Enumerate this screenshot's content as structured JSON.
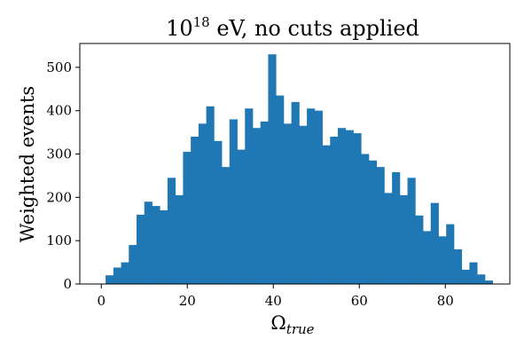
{
  "chart_data": {
    "type": "bar",
    "title_base": "10",
    "title_exp": "18",
    "title_rest": " eV, no cuts applied",
    "xlabel_main": "Ω",
    "xlabel_sub": "true",
    "ylabel": "Weighted events",
    "xlim": [
      -5,
      95
    ],
    "ylim": [
      0,
      555
    ],
    "xticks": [
      0,
      20,
      40,
      60,
      80
    ],
    "yticks": [
      0,
      100,
      200,
      300,
      400,
      500
    ],
    "bin_start": 1,
    "bin_width": 1.8,
    "values": [
      20,
      38,
      50,
      90,
      160,
      190,
      180,
      170,
      245,
      205,
      305,
      340,
      370,
      410,
      330,
      270,
      380,
      310,
      405,
      360,
      375,
      530,
      435,
      370,
      420,
      365,
      405,
      400,
      320,
      340,
      360,
      355,
      348,
      300,
      285,
      270,
      210,
      258,
      205,
      245,
      158,
      122,
      187,
      110,
      138,
      80,
      33,
      50,
      22,
      8
    ],
    "bar_color": "#1f77b4",
    "grid": false,
    "legend": "none"
  }
}
